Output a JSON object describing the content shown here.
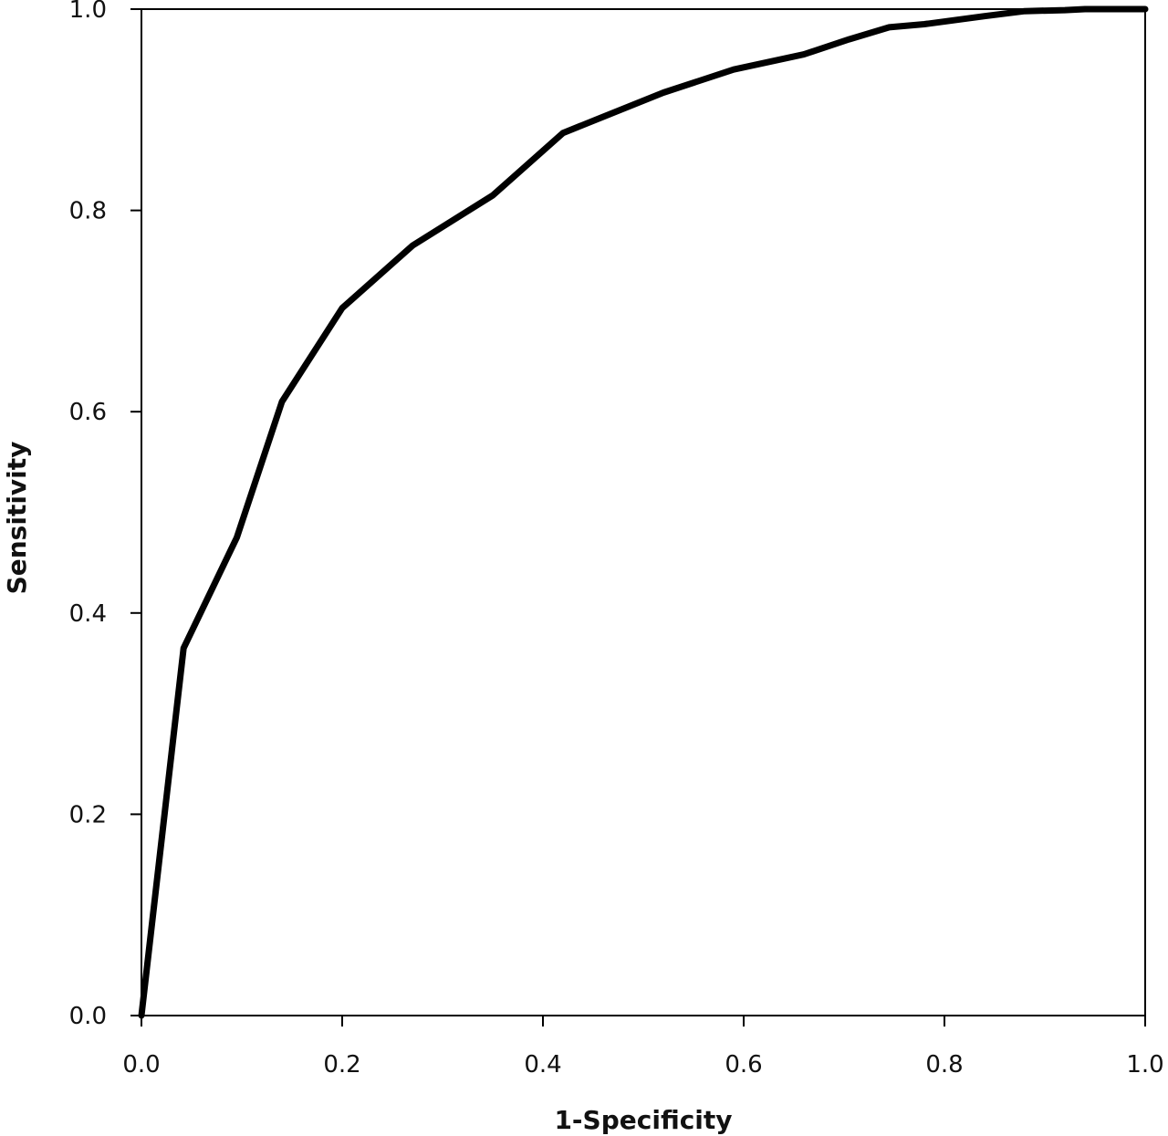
{
  "chart_data": {
    "type": "line",
    "title": "",
    "xlabel": "1-Specificity",
    "ylabel": "Sensitivity",
    "xlim": [
      0.0,
      1.0
    ],
    "ylim": [
      0.0,
      1.0
    ],
    "xticks": [
      "0.0",
      "0.2",
      "0.4",
      "0.6",
      "0.8",
      "1.0"
    ],
    "yticks": [
      "0.0",
      "0.2",
      "0.4",
      "0.6",
      "0.8",
      "1.0"
    ],
    "grid": false,
    "legend": "none",
    "line_color": "#000000",
    "series": [
      {
        "x": [
          0.0,
          0.042,
          0.095,
          0.14,
          0.2,
          0.27,
          0.35,
          0.42,
          0.52,
          0.59,
          0.66,
          0.705,
          0.745,
          0.78,
          0.84,
          0.88,
          0.92,
          0.94,
          1.0
        ],
        "y": [
          0.0,
          0.365,
          0.475,
          0.61,
          0.703,
          0.765,
          0.815,
          0.877,
          0.917,
          0.94,
          0.955,
          0.97,
          0.982,
          0.985,
          0.993,
          0.998,
          0.999,
          1.0,
          1.0
        ]
      }
    ]
  }
}
